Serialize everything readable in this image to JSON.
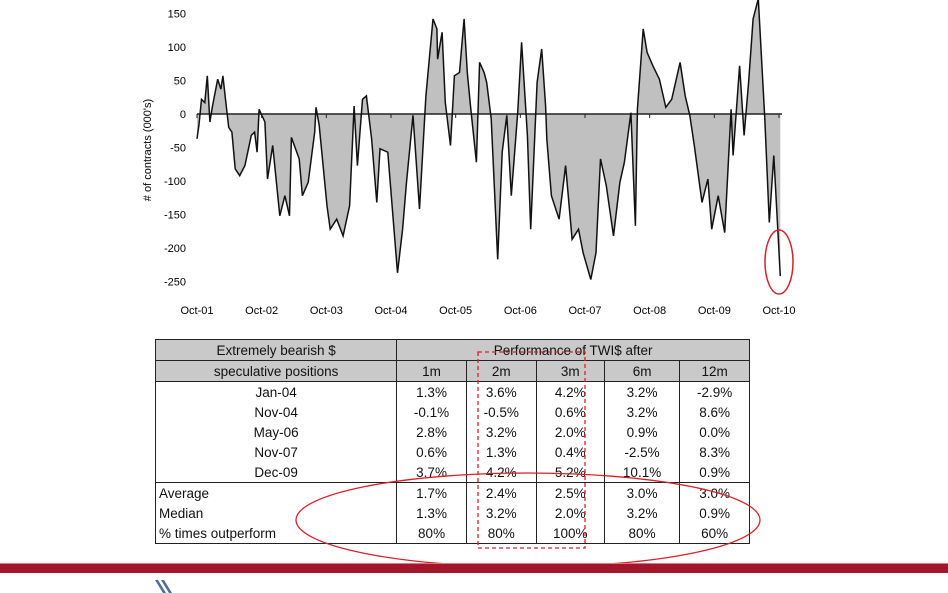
{
  "chart_data": {
    "type": "area",
    "title": "",
    "ylabel": "# of contracts (000's)",
    "xlabel": "",
    "ylim": [
      -250,
      150
    ],
    "yticks": [
      150,
      100,
      50,
      0,
      -50,
      -100,
      -150,
      -200,
      -250
    ],
    "xlim": [
      2001.75,
      2010.75
    ],
    "xtick_labels": [
      "Oct-01",
      "Oct-02",
      "Oct-03",
      "Oct-04",
      "Oct-05",
      "Oct-06",
      "Oct-07",
      "Oct-08",
      "Oct-09",
      "Oct-10"
    ],
    "xtick_values": [
      2001.75,
      2002.75,
      2003.75,
      2004.75,
      2005.75,
      2006.75,
      2007.75,
      2008.75,
      2009.75,
      2010.75
    ],
    "series": [
      {
        "name": "Speculative positions",
        "fill": "#c0c0c0",
        "line": "#111111",
        "points": [
          [
            2001.75,
            -37
          ],
          [
            2001.78,
            -17
          ],
          [
            2001.82,
            22
          ],
          [
            2001.87,
            17
          ],
          [
            2001.91,
            57
          ],
          [
            2001.95,
            -12
          ],
          [
            2001.99,
            12
          ],
          [
            2002.07,
            52
          ],
          [
            2002.12,
            37
          ],
          [
            2002.15,
            57
          ],
          [
            2002.19,
            22
          ],
          [
            2002.24,
            -20
          ],
          [
            2002.29,
            -27
          ],
          [
            2002.34,
            -82
          ],
          [
            2002.41,
            -92
          ],
          [
            2002.49,
            -77
          ],
          [
            2002.59,
            -32
          ],
          [
            2002.64,
            -27
          ],
          [
            2002.68,
            -57
          ],
          [
            2002.71,
            7
          ],
          [
            2002.8,
            -12
          ],
          [
            2002.84,
            -97
          ],
          [
            2002.92,
            -47
          ],
          [
            2003.03,
            -152
          ],
          [
            2003.11,
            -122
          ],
          [
            2003.18,
            -152
          ],
          [
            2003.21,
            -35
          ],
          [
            2003.33,
            -67
          ],
          [
            2003.38,
            -122
          ],
          [
            2003.47,
            -102
          ],
          [
            2003.57,
            -27
          ],
          [
            2003.59,
            10
          ],
          [
            2003.64,
            -17
          ],
          [
            2003.76,
            -137
          ],
          [
            2003.81,
            -172
          ],
          [
            2003.91,
            -157
          ],
          [
            2004.01,
            -182
          ],
          [
            2004.11,
            -137
          ],
          [
            2004.18,
            12
          ],
          [
            2004.23,
            -77
          ],
          [
            2004.31,
            22
          ],
          [
            2004.37,
            27
          ],
          [
            2004.45,
            -37
          ],
          [
            2004.53,
            -132
          ],
          [
            2004.58,
            -52
          ],
          [
            2004.7,
            -57
          ],
          [
            2004.85,
            -237
          ],
          [
            2004.93,
            -172
          ],
          [
            2004.99,
            -102
          ],
          [
            2005.05,
            -42
          ],
          [
            2005.09,
            -2
          ],
          [
            2005.19,
            -142
          ],
          [
            2005.29,
            27
          ],
          [
            2005.4,
            142
          ],
          [
            2005.46,
            127
          ],
          [
            2005.47,
            82
          ],
          [
            2005.54,
            122
          ],
          [
            2005.59,
            17
          ],
          [
            2005.67,
            -47
          ],
          [
            2005.73,
            57
          ],
          [
            2005.81,
            62
          ],
          [
            2005.88,
            142
          ],
          [
            2005.93,
            62
          ],
          [
            2005.98,
            12
          ],
          [
            2006.07,
            -72
          ],
          [
            2006.12,
            77
          ],
          [
            2006.19,
            62
          ],
          [
            2006.23,
            47
          ],
          [
            2006.3,
            -7
          ],
          [
            2006.4,
            -217
          ],
          [
            2006.47,
            -57
          ],
          [
            2006.54,
            -2
          ],
          [
            2006.61,
            -122
          ],
          [
            2006.71,
            2
          ],
          [
            2006.77,
            107
          ],
          [
            2006.86,
            -32
          ],
          [
            2006.91,
            -172
          ],
          [
            2007.01,
            47
          ],
          [
            2007.08,
            97
          ],
          [
            2007.14,
            12
          ],
          [
            2007.16,
            -37
          ],
          [
            2007.23,
            -122
          ],
          [
            2007.35,
            -157
          ],
          [
            2007.45,
            -77
          ],
          [
            2007.55,
            -187
          ],
          [
            2007.65,
            -172
          ],
          [
            2007.72,
            -207
          ],
          [
            2007.84,
            -247
          ],
          [
            2007.92,
            -207
          ],
          [
            2007.99,
            -67
          ],
          [
            2008.08,
            -107
          ],
          [
            2008.19,
            -182
          ],
          [
            2008.29,
            -102
          ],
          [
            2008.36,
            -72
          ],
          [
            2008.46,
            2
          ],
          [
            2008.53,
            -167
          ],
          [
            2008.56,
            7
          ],
          [
            2008.65,
            127
          ],
          [
            2008.71,
            92
          ],
          [
            2008.8,
            72
          ],
          [
            2008.9,
            52
          ],
          [
            2009.0,
            10
          ],
          [
            2009.09,
            22
          ],
          [
            2009.22,
            77
          ],
          [
            2009.3,
            27
          ],
          [
            2009.37,
            -2
          ],
          [
            2009.44,
            -47
          ],
          [
            2009.56,
            -132
          ],
          [
            2009.65,
            -97
          ],
          [
            2009.71,
            -172
          ],
          [
            2009.81,
            -122
          ],
          [
            2009.91,
            -177
          ],
          [
            2010.01,
            7
          ],
          [
            2010.04,
            -62
          ],
          [
            2010.14,
            72
          ],
          [
            2010.21,
            -32
          ],
          [
            2010.28,
            47
          ],
          [
            2010.35,
            142
          ],
          [
            2010.43,
            172
          ],
          [
            2010.53,
            -7
          ],
          [
            2010.6,
            -162
          ],
          [
            2010.67,
            -62
          ],
          [
            2010.77,
            -242
          ]
        ]
      }
    ],
    "grid": false,
    "legend": "none"
  },
  "table": {
    "corner_line1": "Extremely bearish $",
    "corner_line2": "speculative positions",
    "group_header": "Performance of TWI$ after",
    "columns": [
      "1m",
      "2m",
      "3m",
      "6m",
      "12m"
    ],
    "rows": [
      {
        "label": "Jan-04",
        "values": [
          "1.3%",
          "3.6%",
          "4.2%",
          "3.2%",
          "-2.9%"
        ]
      },
      {
        "label": "Nov-04",
        "values": [
          "-0.1%",
          "-0.5%",
          "0.6%",
          "3.2%",
          "8.6%"
        ]
      },
      {
        "label": "May-06",
        "values": [
          "2.8%",
          "3.2%",
          "2.0%",
          "0.9%",
          "0.0%"
        ]
      },
      {
        "label": "Nov-07",
        "values": [
          "0.6%",
          "1.3%",
          "0.4%",
          "-2.5%",
          "8.3%"
        ]
      },
      {
        "label": "Dec-09",
        "values": [
          "3.7%",
          "4.2%",
          "5.2%",
          "10.1%",
          "0.9%"
        ]
      }
    ],
    "summary": [
      {
        "label": "Average",
        "values": [
          "1.7%",
          "2.4%",
          "2.5%",
          "3.0%",
          "3.0%"
        ]
      },
      {
        "label": "Median",
        "values": [
          "1.3%",
          "3.2%",
          "2.0%",
          "3.2%",
          "0.9%"
        ]
      },
      {
        "label": "% times outperform",
        "values": [
          "80%",
          "80%",
          "100%",
          "80%",
          "60%"
        ]
      }
    ]
  },
  "colors": {
    "annotation": "#d8202a",
    "band": "#a3152c",
    "header_bg": "#c9c9c9"
  }
}
